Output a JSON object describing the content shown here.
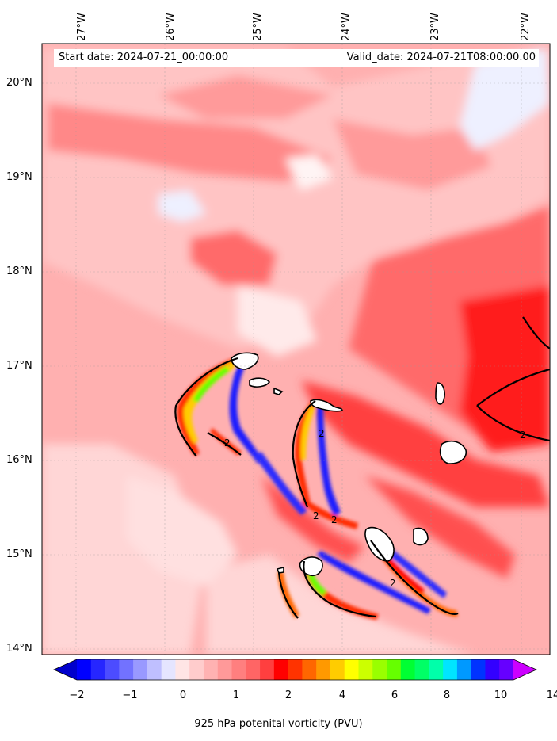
{
  "header": {
    "start_date": "Start date: 2024-07-21_00:00:00",
    "valid_date": "Valid_date: 2024-07-21T08:00:00.00"
  },
  "axes": {
    "lon_ticks": [
      "27°W",
      "26°W",
      "25°W",
      "24°W",
      "23°W",
      "22°W"
    ],
    "lat_ticks": [
      "20°N",
      "19°N",
      "18°N",
      "17°N",
      "16°N",
      "15°N",
      "14°N"
    ]
  },
  "colorbar": {
    "label": "925 hPa potenital vorticity (PVU)",
    "tick_labels": [
      "−2",
      "−1",
      "0",
      "1",
      "2",
      "4",
      "6",
      "8",
      "10",
      "14"
    ],
    "colors": [
      "#0000ff",
      "#2626ff",
      "#4c4cff",
      "#7272ff",
      "#9999ff",
      "#bfbfff",
      "#e5e5ff",
      "#ffe5e5",
      "#ffcccc",
      "#ffb2b2",
      "#ff9999",
      "#ff7f7f",
      "#ff6565",
      "#ff3f3f",
      "#ff0000",
      "#ff3300",
      "#ff6600",
      "#ff9900",
      "#ffcc00",
      "#ffff00",
      "#ccff00",
      "#99ff00",
      "#66ff00",
      "#00ff33",
      "#00ff66",
      "#00ffaa",
      "#00e5ff",
      "#0099ff",
      "#0033ff",
      "#3300ff",
      "#6600ff"
    ],
    "extend_low_color": "#0000cc",
    "extend_high_color": "#cc00ff"
  },
  "contour_label": "2"
}
